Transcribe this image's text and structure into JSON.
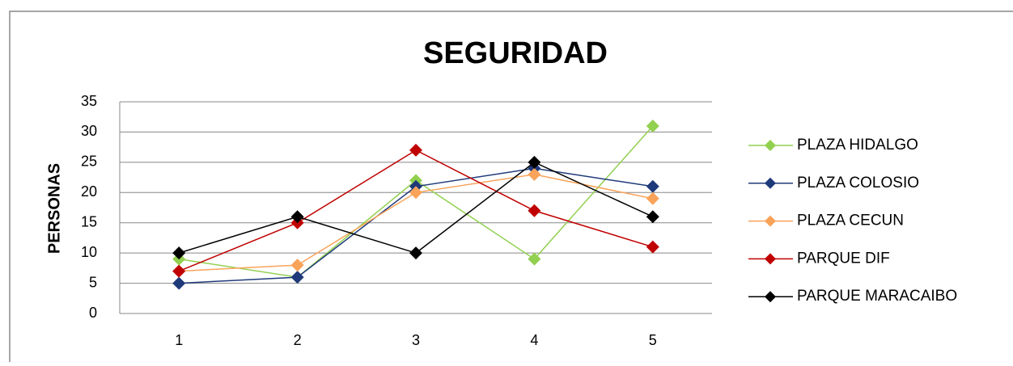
{
  "chart_data": {
    "type": "line",
    "title": "SEGURIDAD",
    "y_label": "PERSONAS",
    "categories": [
      "1",
      "2",
      "3",
      "4",
      "5"
    ],
    "series": [
      {
        "name": "PLAZA HIDALGO",
        "color": "#92d050",
        "values": [
          9,
          6,
          22,
          9,
          31
        ]
      },
      {
        "name": "PLAZA COLOSIO",
        "color": "#1f3a7a",
        "values": [
          5,
          6,
          21,
          24,
          21
        ]
      },
      {
        "name": "PLAZA CECUN",
        "color": "#f9a35a",
        "values": [
          7,
          8,
          20,
          23,
          19
        ]
      },
      {
        "name": "PARQUE DIF",
        "color": "#c00000",
        "values": [
          7,
          15,
          27,
          17,
          11
        ]
      },
      {
        "name": "PARQUE MARACAIBO",
        "color": "#000000",
        "values": [
          10,
          16,
          10,
          25,
          16
        ]
      }
    ],
    "ylim": [
      0,
      35
    ],
    "yticks": [
      0,
      5,
      10,
      15,
      20,
      25,
      30,
      35
    ],
    "grid": true,
    "legend": "right"
  }
}
